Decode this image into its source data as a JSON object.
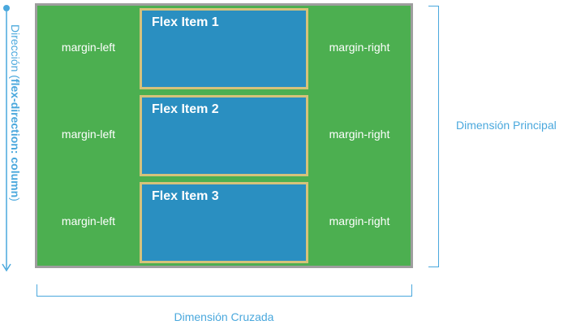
{
  "container": {
    "rows": [
      {
        "item_label": "Flex Item 1",
        "margin_left": "margin-left",
        "margin_right": "margin-right"
      },
      {
        "item_label": "Flex Item 2",
        "margin_left": "margin-left",
        "margin_right": "margin-right"
      },
      {
        "item_label": "Flex Item 3",
        "margin_left": "margin-left",
        "margin_right": "margin-right"
      }
    ]
  },
  "direction": {
    "label_prefix": "Dirección (",
    "label_bold": "flex-direction: column",
    "label_suffix": ")"
  },
  "main_dimension_label": "Dimensión Principal",
  "cross_dimension_label": "Dimensión Cruzada",
  "colors": {
    "container_fill": "#4caf50",
    "container_border": "#9e9e9e",
    "item_fill": "#2a8fc1",
    "item_border": "#d6c27a",
    "annotation": "#4aa8dd"
  }
}
